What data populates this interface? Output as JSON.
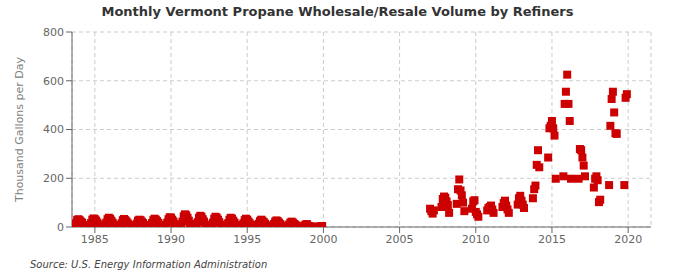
{
  "chart_data": {
    "type": "scatter",
    "title": "Monthly Vermont Propane Wholesale/Resale Volume by Refiners",
    "ylabel": "Thousand Gallons per Day",
    "annotations": [
      "Source: U.S. Energy Information Administration"
    ],
    "color": "#cc0000",
    "marker": "square",
    "grid": true,
    "xlim": [
      1983.5,
      2021.5
    ],
    "xticks": [
      1985,
      1990,
      1995,
      2000,
      2005,
      2010,
      2015,
      2020
    ],
    "ylim": [
      0,
      800
    ],
    "yticks": [
      0,
      200,
      400,
      600,
      800
    ],
    "x": [
      1983.75,
      1983.8333333333333,
      1983.9166666666667,
      1984,
      1984.0833333333333,
      1984.1666666666667,
      1984.25,
      1984.3333333333333,
      1984.4166666666667,
      1984.5,
      1984.5833333333333,
      1984.6666666666667,
      1984.75,
      1984.8333333333333,
      1984.9166666666667,
      1985,
      1985.0833333333333,
      1985.1666666666667,
      1985.25,
      1985.3333333333333,
      1985.4166666666667,
      1985.5,
      1985.5833333333333,
      1985.6666666666667,
      1985.75,
      1985.8333333333333,
      1985.9166666666667,
      1986,
      1986.0833333333333,
      1986.1666666666667,
      1986.25,
      1986.3333333333333,
      1986.4166666666667,
      1986.5,
      1986.5833333333333,
      1986.6666666666667,
      1986.75,
      1986.8333333333333,
      1986.9166666666667,
      1987,
      1987.0833333333333,
      1987.1666666666667,
      1987.25,
      1987.3333333333333,
      1987.4166666666667,
      1987.5,
      1987.5833333333333,
      1987.6666666666667,
      1987.75,
      1987.8333333333333,
      1987.9166666666667,
      1988,
      1988.0833333333333,
      1988.1666666666667,
      1988.25,
      1988.3333333333333,
      1988.4166666666667,
      1988.5,
      1988.5833333333333,
      1988.6666666666667,
      1988.75,
      1988.8333333333333,
      1988.9166666666667,
      1989,
      1989.0833333333333,
      1989.1666666666667,
      1989.25,
      1989.3333333333333,
      1989.4166666666667,
      1989.5,
      1989.5833333333333,
      1989.6666666666667,
      1989.75,
      1989.8333333333333,
      1989.9166666666667,
      1990,
      1990.0833333333333,
      1990.1666666666667,
      1990.25,
      1990.3333333333333,
      1990.4166666666667,
      1990.5,
      1990.5833333333333,
      1990.6666666666667,
      1990.75,
      1990.8333333333333,
      1990.9166666666667,
      1991,
      1991.0833333333333,
      1991.1666666666667,
      1991.25,
      1991.3333333333333,
      1991.4166666666667,
      1991.5,
      1991.5833333333333,
      1991.6666666666667,
      1991.75,
      1991.8333333333333,
      1991.9166666666667,
      1992,
      1992.0833333333333,
      1992.1666666666667,
      1992.25,
      1992.3333333333333,
      1992.4166666666667,
      1992.5,
      1992.5833333333333,
      1992.6666666666667,
      1992.75,
      1992.8333333333333,
      1992.9166666666667,
      1993,
      1993.0833333333333,
      1993.1666666666667,
      1993.25,
      1993.3333333333333,
      1993.4166666666667,
      1993.5,
      1993.5833333333333,
      1993.6666666666667,
      1993.75,
      1993.8333333333333,
      1993.9166666666667,
      1994,
      1994.0833333333333,
      1994.1666666666667,
      1994.25,
      1994.3333333333333,
      1994.4166666666667,
      1994.5,
      1994.5833333333333,
      1994.6666666666667,
      1994.75,
      1994.8333333333333,
      1994.9166666666667,
      1995,
      1995.0833333333333,
      1995.1666666666667,
      1995.25,
      1995.3333333333333,
      1995.4166666666667,
      1995.5,
      1995.5833333333333,
      1995.6666666666667,
      1995.75,
      1995.8333333333333,
      1995.9166666666667,
      1996,
      1996.0833333333333,
      1996.1666666666667,
      1996.25,
      1996.3333333333333,
      1996.4166666666667,
      1996.5,
      1996.5833333333333,
      1996.6666666666667,
      1996.75,
      1996.8333333333333,
      1996.9166666666667,
      1997,
      1997.0833333333333,
      1997.1666666666667,
      1997.25,
      1997.3333333333333,
      1997.4166666666667,
      1997.5,
      1997.5833333333333,
      1997.6666666666667,
      1997.75,
      1997.8333333333333,
      1997.9166666666667,
      1998,
      1998.0833333333333,
      1998.1666666666667,
      1998.25,
      1998.3333333333333,
      1998.4166666666667,
      1998.5,
      1998.5833333333333,
      1998.6666666666667,
      1998.75,
      1998.8333333333333,
      1998.9166666666667,
      1999,
      1999.0833333333333,
      1999.1666666666667,
      1999.25,
      1999.3333333333333,
      1999.4166666666667,
      1999.5,
      1999.5833333333333,
      1999.6666666666667,
      1999.75,
      1999.8333333333333,
      1999.9166666666667,
      2007,
      2007.0833333333333,
      2007.1666666666667,
      2007.25,
      2007.75,
      2007.8333333333333,
      2007.9166666666667,
      2008,
      2008.0833333333333,
      2008.1666666666667,
      2008.25,
      2008.75,
      2008.8333333333333,
      2008.9166666666667,
      2009,
      2009.0833333333333,
      2009.1666666666667,
      2009.25,
      2009.75,
      2009.8333333333333,
      2009.9166666666667,
      2010,
      2010.0833333333333,
      2010.1666666666667,
      2010.75,
      2010.8333333333333,
      2010.9166666666667,
      2011,
      2011.0833333333333,
      2011.1666666666667,
      2011.75,
      2011.8333333333333,
      2011.9166666666667,
      2012,
      2012.0833333333333,
      2012.1666666666667,
      2012.75,
      2012.8333333333333,
      2012.9166666666667,
      2013,
      2013.0833333333333,
      2013.1666666666667,
      2013.75,
      2013.8333333333333,
      2013.9166666666667,
      2014,
      2014.0833333333333,
      2014.1666666666667,
      2014.75,
      2014.8333333333333,
      2014.9166666666667,
      2015,
      2015.0833333333333,
      2015.1666666666667,
      2015.25,
      2015.75,
      2015.8333333333333,
      2015.9166666666667,
      2016,
      2016.0833333333333,
      2016.1666666666667,
      2016.25,
      2016.75,
      2016.8333333333333,
      2016.9166666666667,
      2017,
      2017.0833333333333,
      2017.1666666666667,
      2017.75,
      2017.8333333333333,
      2017.9166666666667,
      2018,
      2018.0833333333333,
      2018.1666666666667,
      2018.75,
      2018.8333333333333,
      2018.9166666666667,
      2019,
      2019.0833333333333,
      2019.1666666666667,
      2019.25,
      2019.75,
      2019.8333333333333,
      2019.9166666666667
    ],
    "values": [
      15,
      28,
      32,
      28,
      22,
      18,
      8,
      5,
      4,
      4,
      5,
      8,
      16,
      30,
      35,
      32,
      26,
      18,
      10,
      5,
      4,
      4,
      5,
      9,
      18,
      32,
      38,
      34,
      26,
      18,
      9,
      4,
      3,
      3,
      4,
      7,
      15,
      28,
      33,
      28,
      22,
      15,
      8,
      3,
      2,
      2,
      3,
      6,
      14,
      26,
      30,
      28,
      22,
      16,
      8,
      3,
      2,
      2,
      3,
      7,
      16,
      28,
      34,
      30,
      24,
      17,
      9,
      4,
      3,
      3,
      4,
      8,
      18,
      32,
      40,
      38,
      30,
      22,
      12,
      5,
      4,
      3,
      4,
      9,
      22,
      44,
      52,
      48,
      38,
      26,
      13,
      5,
      3,
      3,
      4,
      9,
      20,
      38,
      46,
      42,
      32,
      22,
      10,
      4,
      3,
      3,
      4,
      8,
      18,
      34,
      42,
      38,
      30,
      20,
      10,
      4,
      3,
      2,
      3,
      7,
      16,
      30,
      38,
      34,
      26,
      18,
      9,
      3,
      2,
      2,
      3,
      7,
      15,
      28,
      34,
      30,
      22,
      15,
      8,
      3,
      2,
      2,
      3,
      6,
      13,
      24,
      30,
      26,
      20,
      14,
      7,
      2,
      2,
      2,
      2,
      5,
      12,
      22,
      27,
      24,
      18,
      12,
      6,
      2,
      1,
      1,
      2,
      4,
      10,
      18,
      22,
      18,
      13,
      9,
      4,
      2,
      1,
      1,
      1,
      3,
      6,
      10,
      12,
      5,
      3,
      2,
      1,
      0,
      0,
      0,
      0,
      1,
      2,
      3,
      4,
      75,
      65,
      55,
      68,
      82,
      115,
      125,
      120,
      105,
      90,
      58,
      95,
      155,
      195,
      150,
      130,
      100,
      65,
      75,
      105,
      110,
      62,
      52,
      42,
      68,
      78,
      82,
      88,
      72,
      58,
      82,
      98,
      108,
      88,
      72,
      58,
      92,
      118,
      128,
      108,
      92,
      78,
      118,
      155,
      170,
      255,
      315,
      245,
      285,
      405,
      415,
      435,
      405,
      375,
      198,
      208,
      505,
      555,
      625,
      505,
      435,
      198,
      198,
      320,
      315,
      285,
      252,
      208,
      162,
      198,
      208,
      192,
      102,
      112,
      172,
      415,
      525,
      555,
      470,
      385,
      382,
      172,
      530,
      545
    ]
  }
}
